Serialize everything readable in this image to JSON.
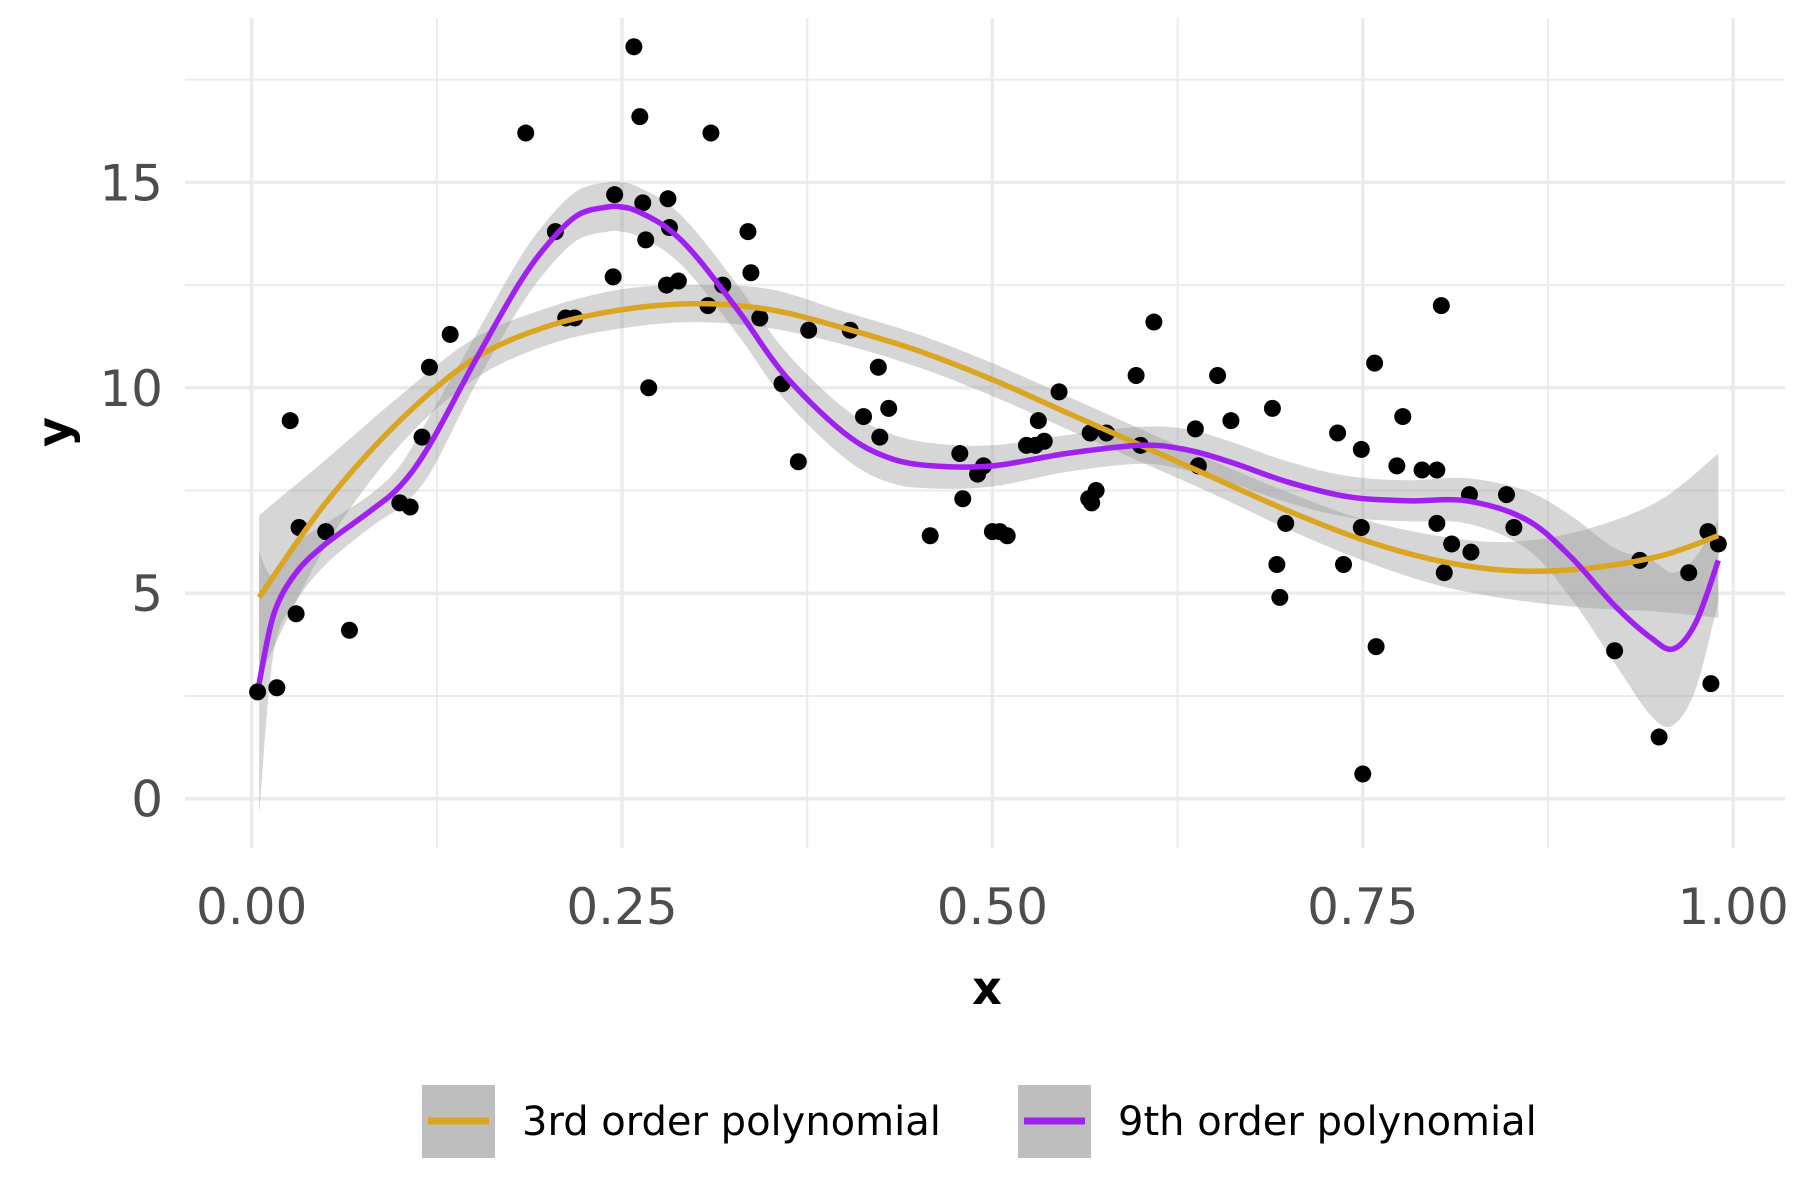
{
  "chart_data": {
    "type": "scatter",
    "title": "",
    "xlabel": "x",
    "ylabel": "y",
    "xlim": [
      -0.045,
      1.035
    ],
    "ylim": [
      -1.2,
      19.0
    ],
    "x_ticks": [
      0.0,
      0.25,
      0.5,
      0.75,
      1.0
    ],
    "x_tick_labels": [
      "0.00",
      "0.25",
      "0.50",
      "0.75",
      "1.00"
    ],
    "x_minor_ticks": [
      0.125,
      0.375,
      0.625,
      0.875
    ],
    "y_ticks": [
      0,
      5,
      10,
      15
    ],
    "y_tick_labels": [
      "0",
      "5",
      "10",
      "15"
    ],
    "y_minor_ticks": [
      2.5,
      7.5,
      12.5,
      17.5
    ],
    "grid": true,
    "legend_position": "bottom",
    "points": {
      "x": [
        0.004,
        0.017,
        0.026,
        0.03,
        0.032,
        0.05,
        0.066,
        0.1,
        0.107,
        0.115,
        0.12,
        0.134,
        0.185,
        0.205,
        0.212,
        0.218,
        0.244,
        0.245,
        0.258,
        0.262,
        0.264,
        0.266,
        0.268,
        0.28,
        0.281,
        0.282,
        0.288,
        0.308,
        0.31,
        0.318,
        0.335,
        0.337,
        0.343,
        0.358,
        0.369,
        0.376,
        0.404,
        0.413,
        0.423,
        0.424,
        0.43,
        0.458,
        0.478,
        0.48,
        0.49,
        0.494,
        0.5,
        0.505,
        0.51,
        0.523,
        0.529,
        0.531,
        0.535,
        0.545,
        0.565,
        0.566,
        0.567,
        0.57,
        0.577,
        0.597,
        0.6,
        0.609,
        0.637,
        0.639,
        0.652,
        0.661,
        0.689,
        0.692,
        0.694,
        0.698,
        0.733,
        0.737,
        0.749,
        0.749,
        0.75,
        0.758,
        0.759,
        0.773,
        0.777,
        0.79,
        0.8,
        0.8,
        0.803,
        0.805,
        0.81,
        0.822,
        0.823,
        0.847,
        0.852,
        0.92,
        0.937,
        0.95,
        0.97,
        0.983,
        0.985,
        0.99
      ],
      "y": [
        2.6,
        2.7,
        9.2,
        4.5,
        6.6,
        6.5,
        4.1,
        7.2,
        7.1,
        8.8,
        10.5,
        11.3,
        16.2,
        13.8,
        11.7,
        11.7,
        12.7,
        14.7,
        18.3,
        16.6,
        14.5,
        13.6,
        10.0,
        12.5,
        14.6,
        13.9,
        12.6,
        12.0,
        16.2,
        12.5,
        13.8,
        12.8,
        11.7,
        10.1,
        8.2,
        11.4,
        11.4,
        9.3,
        10.5,
        8.8,
        9.5,
        6.4,
        8.4,
        7.3,
        7.9,
        8.1,
        6.5,
        6.5,
        6.4,
        8.6,
        8.6,
        9.2,
        8.7,
        9.9,
        7.3,
        8.9,
        7.2,
        7.5,
        8.9,
        10.3,
        8.6,
        11.6,
        9.0,
        8.1,
        10.3,
        9.2,
        9.5,
        5.7,
        4.9,
        6.7,
        8.9,
        5.7,
        8.5,
        6.6,
        0.6,
        10.6,
        3.7,
        8.1,
        9.3,
        8.0,
        8.0,
        6.7,
        12.0,
        5.5,
        6.2,
        7.4,
        6.0,
        7.4,
        6.6,
        3.6,
        5.8,
        1.5,
        5.5,
        6.5,
        2.8,
        6.2
      ]
    },
    "series": [
      {
        "name": "3rd order polynomial",
        "color": "#DAA520",
        "x": [
          0.005,
          0.05,
          0.1,
          0.15,
          0.2,
          0.25,
          0.3,
          0.35,
          0.4,
          0.45,
          0.5,
          0.55,
          0.6,
          0.65,
          0.7,
          0.75,
          0.8,
          0.85,
          0.9,
          0.95,
          0.99
        ],
        "y": [
          4.9,
          7.2,
          9.2,
          10.7,
          11.5,
          11.9,
          12.05,
          11.9,
          11.45,
          10.9,
          10.2,
          9.4,
          8.6,
          7.8,
          7.0,
          6.3,
          5.8,
          5.55,
          5.6,
          5.9,
          6.4
        ],
        "ci_lower": [
          2.95,
          6.15,
          8.6,
          10.2,
          11.05,
          11.45,
          11.6,
          11.45,
          11.05,
          10.5,
          9.8,
          9.0,
          8.2,
          7.4,
          6.55,
          5.8,
          5.2,
          4.85,
          4.65,
          4.55,
          4.4
        ],
        "ci_upper": [
          6.9,
          8.25,
          9.8,
          11.2,
          11.95,
          12.4,
          12.5,
          12.4,
          11.85,
          11.3,
          10.6,
          9.8,
          9.0,
          8.2,
          7.45,
          6.8,
          6.4,
          6.25,
          6.55,
          7.25,
          8.4
        ]
      },
      {
        "name": "9th order polynomial",
        "color": "#A020F0",
        "x": [
          0.005,
          0.015,
          0.03,
          0.05,
          0.08,
          0.1,
          0.12,
          0.15,
          0.18,
          0.2,
          0.22,
          0.24,
          0.25,
          0.26,
          0.28,
          0.3,
          0.33,
          0.36,
          0.4,
          0.43,
          0.46,
          0.5,
          0.55,
          0.6,
          0.63,
          0.66,
          0.7,
          0.74,
          0.78,
          0.82,
          0.86,
          0.89,
          0.92,
          0.945,
          0.96,
          0.975,
          0.99
        ],
        "y": [
          2.8,
          4.5,
          5.5,
          6.2,
          7.0,
          7.6,
          8.6,
          10.6,
          12.5,
          13.5,
          14.2,
          14.4,
          14.4,
          14.3,
          13.9,
          13.2,
          11.8,
          10.3,
          8.9,
          8.3,
          8.1,
          8.1,
          8.4,
          8.6,
          8.5,
          8.2,
          7.7,
          7.35,
          7.25,
          7.25,
          6.8,
          5.9,
          4.7,
          3.9,
          3.65,
          4.3,
          5.8
        ],
        "ci_lower": [
          -0.4,
          3.6,
          4.8,
          5.7,
          6.6,
          7.1,
          7.9,
          10.0,
          11.9,
          12.9,
          13.6,
          13.8,
          13.8,
          13.7,
          13.3,
          12.6,
          11.2,
          9.7,
          8.3,
          7.7,
          7.55,
          7.6,
          7.95,
          8.15,
          8.0,
          7.7,
          7.2,
          6.85,
          6.75,
          6.7,
          6.1,
          4.9,
          3.3,
          2.0,
          1.8,
          2.7,
          4.8
        ],
        "ci_upper": [
          6.0,
          5.4,
          6.2,
          6.7,
          7.4,
          8.1,
          9.3,
          11.2,
          13.1,
          14.1,
          14.8,
          15.0,
          15.0,
          14.9,
          14.5,
          13.8,
          12.4,
          10.9,
          9.5,
          8.9,
          8.65,
          8.6,
          8.85,
          9.05,
          9.0,
          8.7,
          8.2,
          7.85,
          7.75,
          7.8,
          7.5,
          6.9,
          6.1,
          5.8,
          5.5,
          5.9,
          6.8
        ]
      }
    ]
  }
}
